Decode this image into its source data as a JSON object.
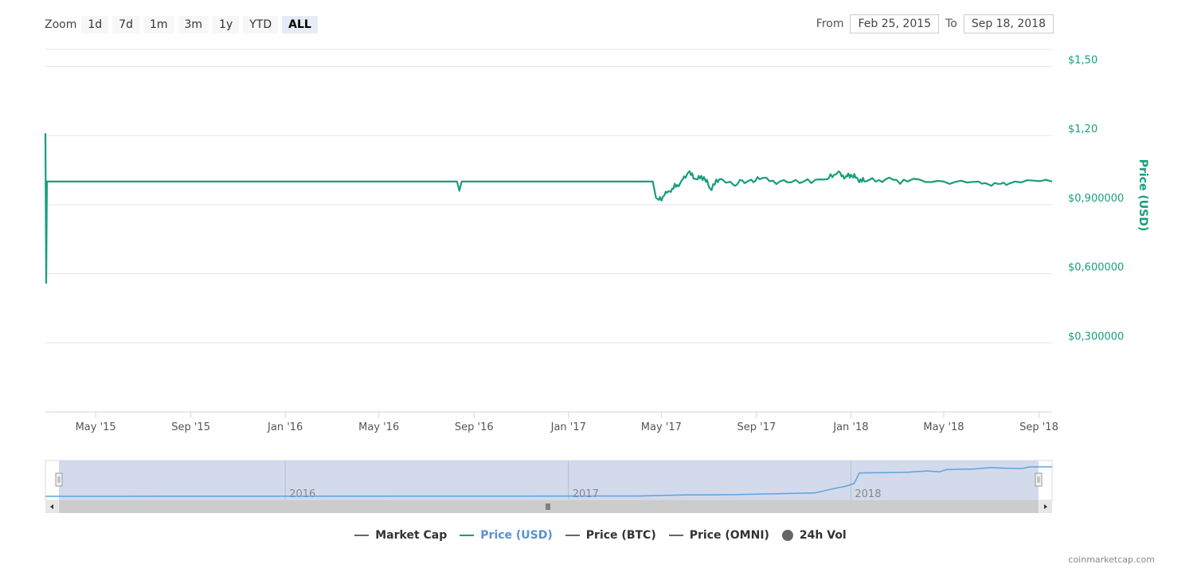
{
  "zoom": {
    "label": "Zoom",
    "buttons": [
      "1d",
      "7d",
      "1m",
      "3m",
      "1y",
      "YTD",
      "ALL"
    ],
    "active": "ALL"
  },
  "range": {
    "from_label": "From",
    "from_value": "Feb 25, 2015",
    "to_label": "To",
    "to_value": "Sep 18, 2018"
  },
  "legend": {
    "market_cap": "Market Cap",
    "price_usd": "Price (USD)",
    "price_btc": "Price (BTC)",
    "price_omni": "Price (OMNI)",
    "vol_24h": "24h Vol"
  },
  "credit": "coinmarketcap.com",
  "colors": {
    "price": "#189e7a",
    "navigator_line": "#5ea3dc",
    "navigator_fill": "#cdd6ea"
  },
  "chart_data": {
    "type": "line",
    "ylabel": "Price (USD)",
    "ylim": [
      0,
      1.5
    ],
    "y_ticks": [
      0.3,
      0.6,
      0.9,
      1.2,
      1.5
    ],
    "y_tick_labels": [
      "$0,300000",
      "$0,600000",
      "$0,900000",
      "$1,20",
      "$1,50"
    ],
    "x_tick_labels": [
      "May '15",
      "Sep '15",
      "Jan '16",
      "May '16",
      "Sep '16",
      "Jan '17",
      "May '17",
      "Sep '17",
      "Jan '18",
      "May '18",
      "Sep '18"
    ],
    "x_ticks": [
      "2015-05-01",
      "2015-09-01",
      "2016-01-01",
      "2016-05-01",
      "2016-09-01",
      "2017-01-01",
      "2017-05-01",
      "2017-09-01",
      "2018-01-01",
      "2018-05-01",
      "2018-09-01"
    ],
    "x_range": [
      "2015-02-25",
      "2018-09-18"
    ],
    "series": [
      {
        "name": "Price (USD)",
        "points": [
          [
            "2015-02-25",
            1.21
          ],
          [
            "2015-02-26",
            0.56
          ],
          [
            "2015-02-27",
            1.0
          ],
          [
            "2015-06-01",
            1.0
          ],
          [
            "2016-01-01",
            1.0
          ],
          [
            "2016-08-10",
            1.0
          ],
          [
            "2016-08-13",
            0.96
          ],
          [
            "2016-08-16",
            1.0
          ],
          [
            "2017-01-01",
            1.0
          ],
          [
            "2017-04-20",
            1.0
          ],
          [
            "2017-04-24",
            0.93
          ],
          [
            "2017-04-28",
            0.92
          ],
          [
            "2017-05-05",
            0.94
          ],
          [
            "2017-05-15",
            0.97
          ],
          [
            "2017-05-25",
            0.99
          ],
          [
            "2017-06-05",
            1.04
          ],
          [
            "2017-06-15",
            1.01
          ],
          [
            "2017-06-25",
            1.02
          ],
          [
            "2017-07-03",
            0.97
          ],
          [
            "2017-07-15",
            1.01
          ],
          [
            "2017-08-01",
            0.99
          ],
          [
            "2017-08-20",
            1.0
          ],
          [
            "2017-09-05",
            1.01
          ],
          [
            "2017-10-01",
            1.0
          ],
          [
            "2017-11-01",
            1.0
          ],
          [
            "2017-12-01",
            1.01
          ],
          [
            "2017-12-15",
            1.04
          ],
          [
            "2017-12-25",
            1.02
          ],
          [
            "2018-01-01",
            1.03
          ],
          [
            "2018-01-10",
            1.01
          ],
          [
            "2018-01-20",
            1.0
          ],
          [
            "2018-02-15",
            1.01
          ],
          [
            "2018-03-15",
            1.0
          ],
          [
            "2018-05-01",
            1.0
          ],
          [
            "2018-06-15",
            1.0
          ],
          [
            "2018-07-10",
            0.99
          ],
          [
            "2018-08-01",
            1.0
          ],
          [
            "2018-09-18",
            1.0
          ]
        ]
      }
    ]
  },
  "navigator": {
    "year_labels": [
      "2016",
      "2017",
      "2018"
    ],
    "year_ticks": [
      "2016-01-01",
      "2017-01-01",
      "2018-01-01"
    ],
    "x_range": [
      "2015-02-25",
      "2018-09-18"
    ],
    "series_level": [
      [
        "2015-02-25",
        0.0
      ],
      [
        "2017-04-01",
        0.01
      ],
      [
        "2017-06-01",
        0.04
      ],
      [
        "2017-08-01",
        0.05
      ],
      [
        "2017-10-01",
        0.08
      ],
      [
        "2017-11-15",
        0.1
      ],
      [
        "2017-12-10",
        0.23
      ],
      [
        "2017-12-25",
        0.3
      ],
      [
        "2018-01-05",
        0.38
      ],
      [
        "2018-01-12",
        0.7
      ],
      [
        "2018-02-15",
        0.71
      ],
      [
        "2018-03-15",
        0.72
      ],
      [
        "2018-04-10",
        0.76
      ],
      [
        "2018-04-25",
        0.73
      ],
      [
        "2018-05-05",
        0.8
      ],
      [
        "2018-06-10",
        0.82
      ],
      [
        "2018-07-01",
        0.86
      ],
      [
        "2018-07-20",
        0.84
      ],
      [
        "2018-08-10",
        0.83
      ],
      [
        "2018-08-20",
        0.88
      ],
      [
        "2018-09-18",
        0.88
      ]
    ]
  }
}
